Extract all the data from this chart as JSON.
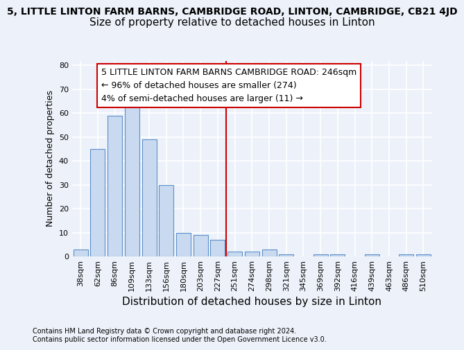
{
  "title_main": "5, LITTLE LINTON FARM BARNS, CAMBRIDGE ROAD, LINTON, CAMBRIDGE, CB21 4JD",
  "title_sub": "Size of property relative to detached houses in Linton",
  "xlabel": "Distribution of detached houses by size in Linton",
  "ylabel": "Number of detached properties",
  "categories": [
    "38sqm",
    "62sqm",
    "86sqm",
    "109sqm",
    "133sqm",
    "156sqm",
    "180sqm",
    "203sqm",
    "227sqm",
    "251sqm",
    "274sqm",
    "298sqm",
    "321sqm",
    "345sqm",
    "369sqm",
    "392sqm",
    "416sqm",
    "439sqm",
    "463sqm",
    "486sqm",
    "510sqm"
  ],
  "values": [
    3,
    45,
    59,
    66,
    49,
    30,
    10,
    9,
    7,
    2,
    2,
    3,
    1,
    0,
    1,
    1,
    0,
    1,
    0,
    1,
    1
  ],
  "bar_color": "#c8d9f0",
  "bar_edgecolor": "#5b8fc8",
  "vline_index": 9,
  "annotation_line1": "5 LITTLE LINTON FARM BARNS CAMBRIDGE ROAD: 246sqm",
  "annotation_line2": "← 96% of detached houses are smaller (274)",
  "annotation_line3": "4% of semi-detached houses are larger (11) →",
  "annotation_box_color": "#ffffff",
  "annotation_box_edgecolor": "#cc0000",
  "vline_color": "#cc0000",
  "ylim": [
    0,
    82
  ],
  "yticks": [
    0,
    10,
    20,
    30,
    40,
    50,
    60,
    70,
    80
  ],
  "footer_text": "Contains HM Land Registry data © Crown copyright and database right 2024.\nContains public sector information licensed under the Open Government Licence v3.0.",
  "bg_color": "#edf2fa",
  "plot_bg_color": "#edf2fa",
  "grid_color": "#ffffff",
  "title_main_fontsize": 10,
  "title_sub_fontsize": 11,
  "xlabel_fontsize": 11,
  "ylabel_fontsize": 9,
  "tick_fontsize": 8,
  "footer_fontsize": 7,
  "annotation_fontsize": 9
}
